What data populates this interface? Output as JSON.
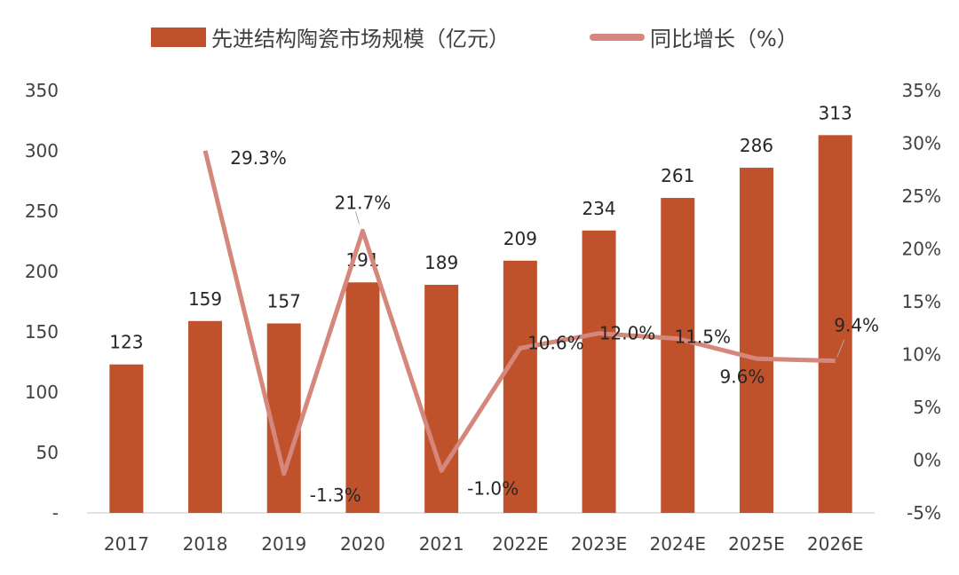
{
  "chart_data": {
    "type": "bar+line",
    "categories": [
      "2017",
      "2018",
      "2019",
      "2020",
      "2021",
      "2022E",
      "2023E",
      "2024E",
      "2025E",
      "2026E"
    ],
    "series": [
      {
        "name": "先进结构陶瓷市场规模（亿元）",
        "type": "bar",
        "axis": "left",
        "color": "#C0522B",
        "values": [
          123,
          159,
          157,
          191,
          189,
          209,
          234,
          261,
          286,
          313
        ]
      },
      {
        "name": "同比增长（%）",
        "type": "line",
        "axis": "right",
        "color": "#D4877A",
        "values": [
          null,
          29.3,
          -1.3,
          21.7,
          -1.0,
          10.6,
          12.0,
          11.5,
          9.6,
          9.4
        ],
        "labels": [
          "",
          "29.3%",
          "-1.3%",
          "21.7%",
          "-1.0%",
          "10.6%",
          "12.0%",
          "11.5%",
          "9.6%",
          "9.4%"
        ]
      }
    ],
    "y_left": {
      "range": [
        0,
        350
      ],
      "ticks": [
        "-",
        "50",
        "100",
        "150",
        "200",
        "250",
        "300",
        "350"
      ]
    },
    "y_right": {
      "range": [
        -5,
        35
      ],
      "ticks": [
        "-5%",
        "0%",
        "5%",
        "10%",
        "15%",
        "20%",
        "25%",
        "30%",
        "35%"
      ]
    },
    "grid": false,
    "legend_position": "top"
  }
}
